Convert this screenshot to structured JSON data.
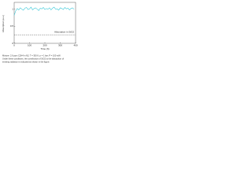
{
  "chart_data": {
    "type": "line",
    "y_label": "Absorption (a.u.)",
    "x_label": "Time (h)",
    "x": [
      0,
      10,
      20,
      30,
      40,
      50,
      60,
      70,
      80,
      90,
      100,
      110,
      120,
      130,
      140,
      150,
      160,
      170,
      180,
      190,
      200,
      210,
      220,
      230,
      240,
      250,
      260,
      270,
      280,
      290,
      300,
      310,
      320,
      330,
      340,
      350,
      360,
      370,
      380,
      390
    ],
    "series": [
      {
        "name": "Absorption",
        "color": "#3cc8d8",
        "values": [
          0.82,
          0.95,
          1.02,
          0.98,
          1.04,
          1.0,
          0.97,
          1.03,
          1.05,
          0.99,
          1.01,
          1.06,
          0.98,
          1.02,
          1.04,
          1.0,
          0.96,
          1.03,
          1.01,
          1.05,
          0.99,
          1.02,
          1.0,
          1.04,
          0.98,
          1.03,
          1.06,
          1.0,
          1.01,
          0.97,
          1.04,
          1.02,
          0.99,
          1.05,
          1.01,
          1.03,
          0.98,
          1.02,
          1.04,
          1.0
        ]
      }
    ],
    "reference_line": 0.25,
    "reference_label": "Absorption in SiO2",
    "xlim": [
      0,
      400
    ],
    "xticks": [
      0,
      100,
      200,
      300,
      400
    ],
    "ylim": [
      0,
      1.2
    ],
    "yticks": [
      0,
      0.5,
      1
    ],
    "caption": [
      "Mixture: 2.6 ppm C2H4 in N2; T = 300 K; p = 1 bar; P = 100 mW.",
      "Under these conditions, the contribution of SiO2 to the absorption of",
      "emitting radiation is indicated as shown in the figure."
    ]
  }
}
